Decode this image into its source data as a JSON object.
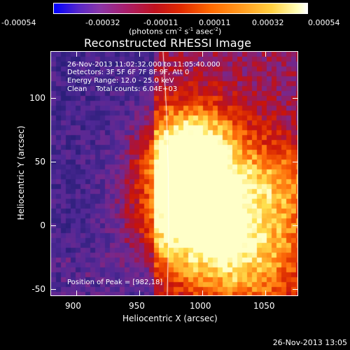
{
  "colorbar": {
    "ticks": [
      "-0.00054",
      "-0.00032",
      "-0.00011",
      "0.00011",
      "0.00032",
      "0.00054"
    ],
    "unit_prefix": "(photons cm",
    "unit_exp1": "-2",
    "unit_mid1": " s",
    "unit_exp2": "-1",
    "unit_mid2": " asec",
    "unit_exp3": "-2",
    "unit_suffix": ")"
  },
  "title": "Reconstructed RHESSI Image",
  "info": {
    "time_range": "26-Nov-2013 11:02:32.000 to 11:05:40.000",
    "detectors": "Detectors: 3F 5F 6F 7F 8F 9F, Att 0",
    "energy": "Energy Range: 12.0 - 25.0 keV",
    "clean": "Clean    Total counts: 6.04E+03"
  },
  "peak": "Position of Peak = [982,18]",
  "axes": {
    "xlabel": "Heliocentric X (arcsec)",
    "ylabel": "Heliocentric Y (arcsec)",
    "xticks": [
      "900",
      "950",
      "1000",
      "1050"
    ],
    "yticks": [
      "100",
      "50",
      "0",
      "-50"
    ]
  },
  "footer": "26-Nov-2013 13:05"
}
